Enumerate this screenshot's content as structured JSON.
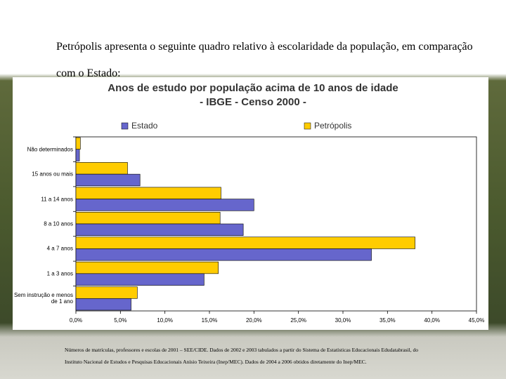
{
  "slide_text": "Petrópolis apresenta o seguinte quadro relativo à escolaridade da população, em comparação com o Estado:",
  "chart_data": {
    "type": "bar",
    "orientation": "horizontal",
    "title": "Anos de estudo por população acima de 10 anos de idade",
    "subtitle": "- IBGE - Censo 2000 -",
    "categories": [
      "Não determinados",
      "15 anos ou mais",
      "11 a 14 anos",
      "8 a 10 anos",
      "4 a 7 anos",
      "1 a 3 anos",
      "Sem instrução e menos de 1 ano"
    ],
    "series": [
      {
        "name": "Estado",
        "color": "#6666cc",
        "values": [
          0.4,
          7.2,
          20.0,
          18.8,
          33.2,
          14.4,
          6.2
        ]
      },
      {
        "name": "Petrópolis",
        "color": "#ffcc00",
        "values": [
          0.5,
          5.8,
          16.3,
          16.2,
          38.1,
          16.0,
          6.9
        ]
      }
    ],
    "xlim": [
      0,
      45
    ],
    "xticks": [
      {
        "value": 0,
        "label": "0,0%"
      },
      {
        "value": 5,
        "label": "5,0%"
      },
      {
        "value": 10,
        "label": "10,0%"
      },
      {
        "value": 15,
        "label": "15,0%"
      },
      {
        "value": 20,
        "label": "20,0%"
      },
      {
        "value": 25,
        "label": "25,0%"
      },
      {
        "value": 30,
        "label": "30,0%"
      },
      {
        "value": 35,
        "label": "35,0%"
      },
      {
        "value": 40,
        "label": "40,0%"
      },
      {
        "value": 45,
        "label": "45,0%"
      }
    ],
    "grid": false
  },
  "footnote": "Números de matrículas, professores e escolas de 2001 – SEE/CIDE. Dados de 2002 e 2003 tabulados a partir do Sistema de Estatísticas Educacionais Edudatabrasil, do Instituto Nacional de Estudos e Pesquisas Educacionais Anísio Teixeira (Inep/MEC). Dados de 2004 a 2006 obtidos diretamente do Inep/MEC."
}
